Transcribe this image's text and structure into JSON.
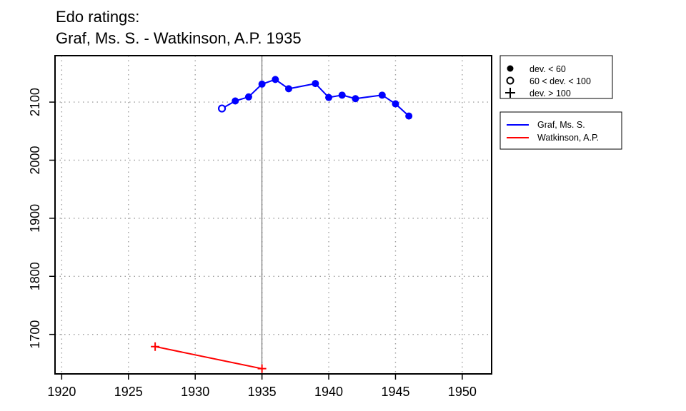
{
  "chart_data": {
    "type": "line",
    "title": "Edo ratings:",
    "subtitle": "Graf, Ms. S. - Watkinson, A.P. 1935",
    "xlim": [
      1919.5,
      1952.2
    ],
    "ylim": [
      1632,
      2180
    ],
    "x_ticks": [
      1920,
      1925,
      1930,
      1935,
      1940,
      1945,
      1950
    ],
    "y_ticks": [
      1700,
      1800,
      1900,
      2000,
      2100
    ],
    "grid": true,
    "reference_line_x": 1935,
    "legend_deviation": [
      {
        "symbol": "filled-circle",
        "label": "dev. < 60"
      },
      {
        "symbol": "open-circle",
        "label": "60 < dev. < 100"
      },
      {
        "symbol": "plus",
        "label": "dev. > 100"
      }
    ],
    "series": [
      {
        "name": "Graf, Ms. S.",
        "color": "#0000ff",
        "points": [
          {
            "x": 1932,
            "y": 2089,
            "dev": "mid"
          },
          {
            "x": 1933,
            "y": 2102,
            "dev": "low"
          },
          {
            "x": 1934,
            "y": 2109,
            "dev": "low"
          },
          {
            "x": 1935,
            "y": 2131,
            "dev": "low"
          },
          {
            "x": 1936,
            "y": 2139,
            "dev": "low"
          },
          {
            "x": 1937,
            "y": 2123,
            "dev": "low"
          },
          {
            "x": 1939,
            "y": 2132,
            "dev": "low"
          },
          {
            "x": 1940,
            "y": 2108,
            "dev": "low"
          },
          {
            "x": 1941,
            "y": 2112,
            "dev": "low"
          },
          {
            "x": 1942,
            "y": 2106,
            "dev": "low"
          },
          {
            "x": 1944,
            "y": 2112,
            "dev": "low"
          },
          {
            "x": 1945,
            "y": 2097,
            "dev": "low"
          },
          {
            "x": 1946,
            "y": 2076,
            "dev": "low"
          }
        ]
      },
      {
        "name": "Watkinson, A.P.",
        "color": "#ff0000",
        "points": [
          {
            "x": 1927,
            "y": 1679,
            "dev": "high"
          },
          {
            "x": 1935,
            "y": 1641,
            "dev": "high"
          }
        ]
      }
    ]
  }
}
